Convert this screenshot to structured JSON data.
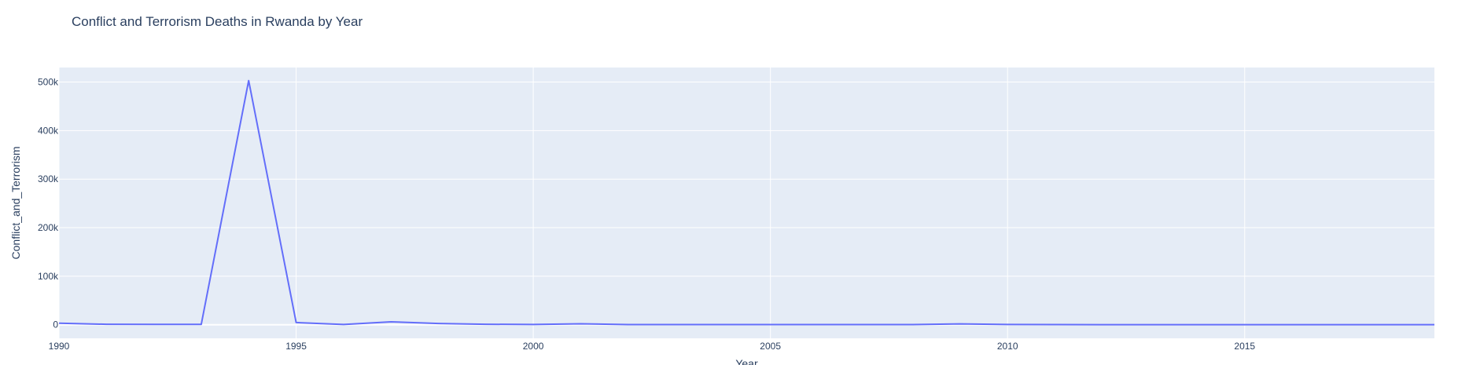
{
  "chart_data": {
    "type": "line",
    "title": "Conflict and Terrorism Deaths in Rwanda by Year",
    "xlabel": "Year",
    "ylabel": "Conflict_and_Terrorism",
    "x": [
      1990,
      1991,
      1992,
      1993,
      1994,
      1995,
      1996,
      1997,
      1998,
      1999,
      2000,
      2001,
      2002,
      2003,
      2004,
      2005,
      2006,
      2007,
      2008,
      2009,
      2010,
      2011,
      2012,
      2013,
      2014,
      2015,
      2016,
      2017,
      2018,
      2019
    ],
    "series": [
      {
        "values": [
          3000,
          1000,
          800,
          600,
          503000,
          4500,
          500,
          6000,
          2500,
          1000,
          500,
          2000,
          300,
          300,
          300,
          300,
          300,
          300,
          300,
          1800,
          500,
          300,
          200,
          200,
          200,
          200,
          200,
          200,
          200,
          100
        ],
        "color": "#636efa"
      }
    ],
    "xlim": [
      1990,
      2019
    ],
    "ylim": [
      -28000,
      530000
    ],
    "x_ticks": [
      1990,
      1995,
      2000,
      2005,
      2010,
      2015
    ],
    "y_ticks": [
      0,
      100000,
      200000,
      300000,
      400000,
      500000
    ],
    "y_tick_labels": [
      "0",
      "100k",
      "200k",
      "300k",
      "400k",
      "500k"
    ],
    "grid": true,
    "plot_background": "#e5ecf6",
    "grid_color": "#ffffff"
  }
}
